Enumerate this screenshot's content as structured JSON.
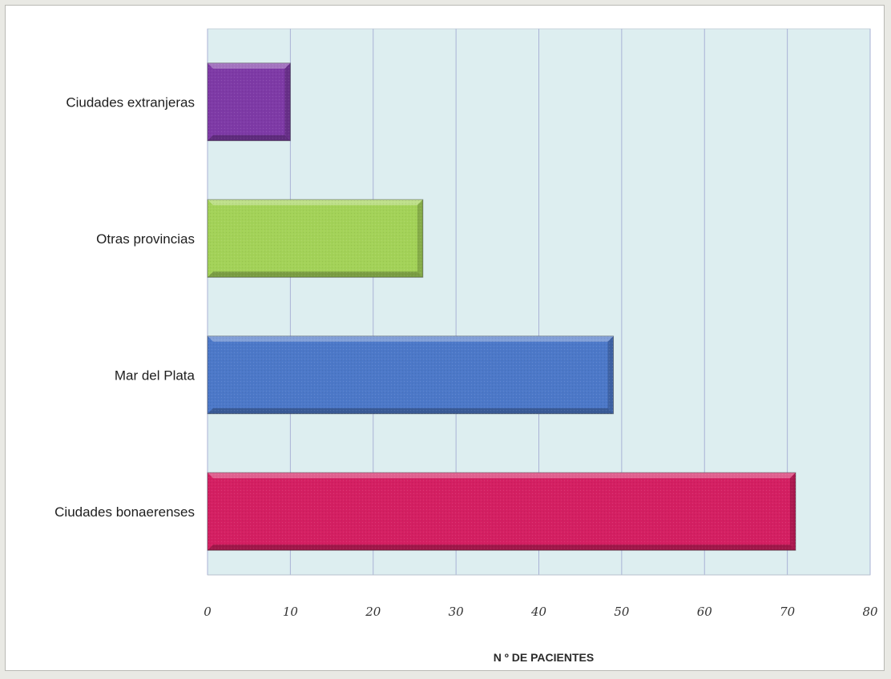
{
  "chart_data": {
    "type": "bar",
    "orientation": "horizontal",
    "categories": [
      "Ciudades bonaerenses",
      "Mar del Plata",
      "Otras provincias",
      "Ciudades extranjeras"
    ],
    "values": [
      71,
      49,
      26,
      10
    ],
    "colors": [
      "#d41f62",
      "#4c78c8",
      "#a3d258",
      "#7e3aa6"
    ],
    "xlabel": "N º DE PACIENTES",
    "xlim": [
      0,
      80
    ],
    "xticks": [
      0,
      10,
      20,
      30,
      40,
      50,
      60,
      70,
      80
    ],
    "grid": true,
    "legend": "none",
    "plot_background": "#ddeef0",
    "gridline_color": "#a9b2d6"
  }
}
